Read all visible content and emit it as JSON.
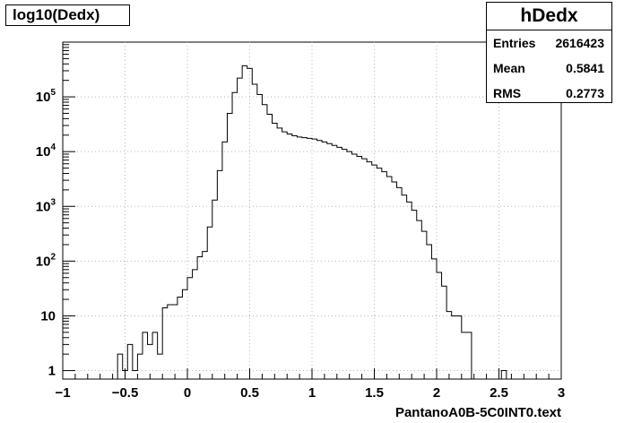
{
  "title": "log10(Dedx)",
  "stats": {
    "name": "hDedx",
    "entries_label": "Entries",
    "entries": "2616423",
    "mean_label": "Mean",
    "mean": "0.5841",
    "rms_label": "RMS",
    "rms": "0.2773"
  },
  "x_axis_title": "PantanoA0B-5C0INT0.text",
  "chart_data": {
    "type": "bar",
    "style": "step-histogram",
    "title": "log10(Dedx)",
    "xlabel": "PantanoA0B-5C0INT0.text",
    "ylabel": "",
    "xlim": [
      -1,
      3
    ],
    "ylim": [
      0.7,
      1000000
    ],
    "yscale": "log",
    "grid": true,
    "x_ticks": [
      -1,
      -0.5,
      0,
      0.5,
      1,
      1.5,
      2,
      2.5,
      3
    ],
    "x_tick_labels": [
      "−1",
      "−0.5",
      "0",
      "0.5",
      "1",
      "1.5",
      "2",
      "2.5",
      "3"
    ],
    "y_ticks": [
      1,
      10,
      100,
      1000,
      10000,
      100000
    ],
    "y_tick_labels": [
      {
        "base": "1",
        "exp": ""
      },
      {
        "base": "10",
        "exp": ""
      },
      {
        "base": "10",
        "exp": "2"
      },
      {
        "base": "10",
        "exp": "3"
      },
      {
        "base": "10",
        "exp": "4"
      },
      {
        "base": "10",
        "exp": "5"
      }
    ],
    "bin_width": 0.04,
    "bins": [
      {
        "x": -0.56,
        "y": 2
      },
      {
        "x": -0.52,
        "y": 1
      },
      {
        "x": -0.48,
        "y": 3
      },
      {
        "x": -0.44,
        "y": 1
      },
      {
        "x": -0.4,
        "y": 2
      },
      {
        "x": -0.36,
        "y": 5
      },
      {
        "x": -0.32,
        "y": 3
      },
      {
        "x": -0.28,
        "y": 5
      },
      {
        "x": -0.24,
        "y": 2
      },
      {
        "x": -0.2,
        "y": 14
      },
      {
        "x": -0.16,
        "y": 16
      },
      {
        "x": -0.12,
        "y": 16
      },
      {
        "x": -0.08,
        "y": 22
      },
      {
        "x": -0.04,
        "y": 30
      },
      {
        "x": 0.0,
        "y": 50
      },
      {
        "x": 0.04,
        "y": 70
      },
      {
        "x": 0.08,
        "y": 120
      },
      {
        "x": 0.12,
        "y": 150
      },
      {
        "x": 0.16,
        "y": 420
      },
      {
        "x": 0.2,
        "y": 1300
      },
      {
        "x": 0.24,
        "y": 4500
      },
      {
        "x": 0.28,
        "y": 15000
      },
      {
        "x": 0.32,
        "y": 50000
      },
      {
        "x": 0.36,
        "y": 120000
      },
      {
        "x": 0.4,
        "y": 220000
      },
      {
        "x": 0.44,
        "y": 370000
      },
      {
        "x": 0.48,
        "y": 330000
      },
      {
        "x": 0.52,
        "y": 170000
      },
      {
        "x": 0.56,
        "y": 110000
      },
      {
        "x": 0.6,
        "y": 72000
      },
      {
        "x": 0.64,
        "y": 48000
      },
      {
        "x": 0.68,
        "y": 33000
      },
      {
        "x": 0.72,
        "y": 27000
      },
      {
        "x": 0.76,
        "y": 23000
      },
      {
        "x": 0.8,
        "y": 21000
      },
      {
        "x": 0.84,
        "y": 19500
      },
      {
        "x": 0.88,
        "y": 18500
      },
      {
        "x": 0.92,
        "y": 18000
      },
      {
        "x": 0.96,
        "y": 17500
      },
      {
        "x": 1.0,
        "y": 17000
      },
      {
        "x": 1.04,
        "y": 16000
      },
      {
        "x": 1.08,
        "y": 15000
      },
      {
        "x": 1.12,
        "y": 14000
      },
      {
        "x": 1.16,
        "y": 13000
      },
      {
        "x": 1.2,
        "y": 12000
      },
      {
        "x": 1.24,
        "y": 11000
      },
      {
        "x": 1.28,
        "y": 10000
      },
      {
        "x": 1.32,
        "y": 9000
      },
      {
        "x": 1.36,
        "y": 8200
      },
      {
        "x": 1.4,
        "y": 7400
      },
      {
        "x": 1.44,
        "y": 6500
      },
      {
        "x": 1.48,
        "y": 5700
      },
      {
        "x": 1.52,
        "y": 5000
      },
      {
        "x": 1.56,
        "y": 4300
      },
      {
        "x": 1.6,
        "y": 3500
      },
      {
        "x": 1.64,
        "y": 2800
      },
      {
        "x": 1.68,
        "y": 2200
      },
      {
        "x": 1.72,
        "y": 1600
      },
      {
        "x": 1.76,
        "y": 1200
      },
      {
        "x": 1.8,
        "y": 850
      },
      {
        "x": 1.84,
        "y": 550
      },
      {
        "x": 1.88,
        "y": 350
      },
      {
        "x": 1.92,
        "y": 200
      },
      {
        "x": 1.96,
        "y": 110
      },
      {
        "x": 2.0,
        "y": 62
      },
      {
        "x": 2.04,
        "y": 35
      },
      {
        "x": 2.08,
        "y": 12
      },
      {
        "x": 2.12,
        "y": 10
      },
      {
        "x": 2.16,
        "y": 10
      },
      {
        "x": 2.2,
        "y": 5
      },
      {
        "x": 2.24,
        "y": 5
      },
      {
        "x": 2.52,
        "y": 1
      }
    ]
  }
}
